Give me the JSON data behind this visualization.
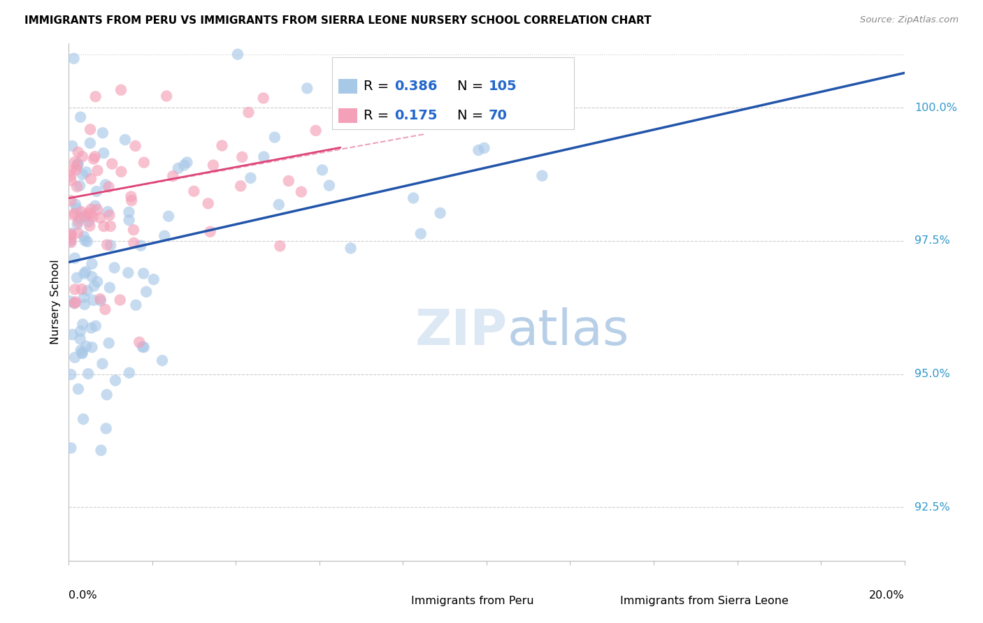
{
  "title": "IMMIGRANTS FROM PERU VS IMMIGRANTS FROM SIERRA LEONE NURSERY SCHOOL CORRELATION CHART",
  "source": "Source: ZipAtlas.com",
  "ylabel": "Nursery School",
  "yticks": [
    92.5,
    95.0,
    97.5,
    100.0
  ],
  "ytick_labels": [
    "92.5%",
    "95.0%",
    "97.5%",
    "100.0%"
  ],
  "xlim": [
    0.0,
    20.0
  ],
  "ylim": [
    91.5,
    101.2
  ],
  "blue_color": "#a8c8e8",
  "pink_color": "#f4a0b8",
  "blue_line_color": "#2255aa",
  "pink_line_color": "#dd4477",
  "blue_dash_color": "#aabbdd",
  "pink_dash_color": "#eea0bb",
  "legend_r_color": "#2266cc",
  "legend_n_color": "#2266cc",
  "watermark_color": "#dde8f5",
  "blue_trend_x0": 0.0,
  "blue_trend_y0": 97.1,
  "blue_trend_x1": 20.0,
  "blue_trend_y1": 100.65,
  "pink_trend_x0": 0.0,
  "pink_trend_y0": 98.3,
  "pink_trend_x1": 6.5,
  "pink_trend_y1": 99.25,
  "pink_dash_x0": 0.0,
  "pink_dash_y0": 98.3,
  "pink_dash_x1": 8.5,
  "pink_dash_y1": 99.5
}
